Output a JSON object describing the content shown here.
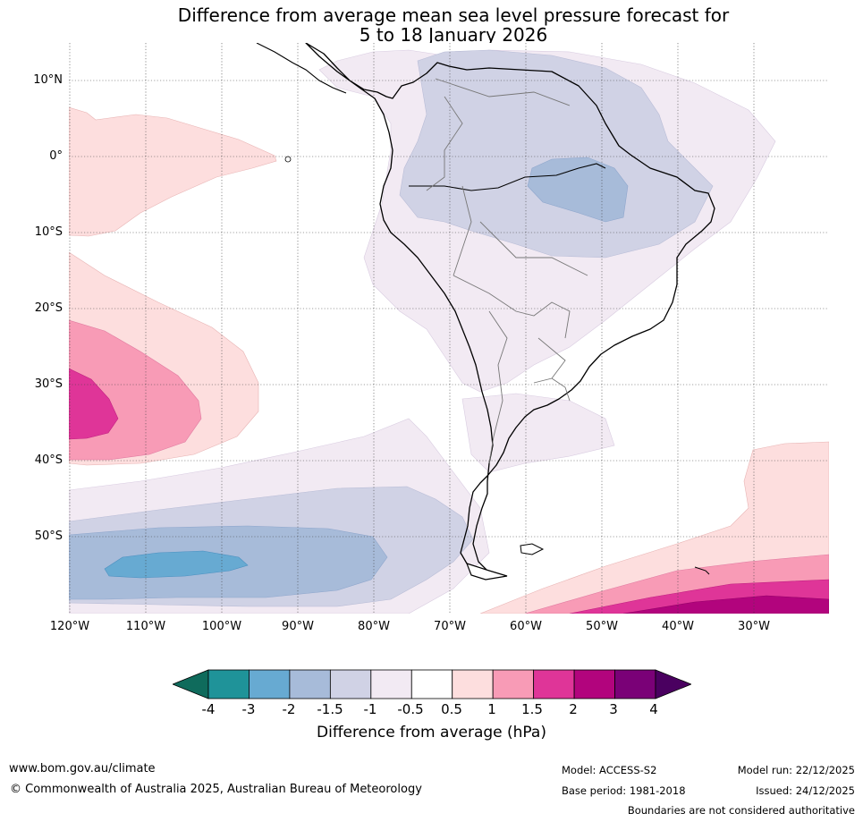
{
  "title": {
    "line1": "Difference from average mean sea level pressure forecast for",
    "line2": "5 to 18 January 2026"
  },
  "latitude_labels": [
    "10°N",
    "0°",
    "10°S",
    "20°S",
    "30°S",
    "40°S",
    "50°S"
  ],
  "longitude_labels": [
    "120°W",
    "110°W",
    "100°W",
    "90°W",
    "80°W",
    "70°W",
    "60°W",
    "50°W",
    "40°W",
    "30°W"
  ],
  "colorbar": {
    "ticks": [
      "-4",
      "-3",
      "-2",
      "-1.5",
      "-1",
      "-0.5",
      "0.5",
      "1",
      "1.5",
      "2",
      "3",
      "4"
    ],
    "colors": [
      "#0f6b5c",
      "#1f9399",
      "#67aad2",
      "#a7bbd9",
      "#d0d2e5",
      "#f2eaf3",
      "#ffffff",
      "#fddede",
      "#f89bb6",
      "#df3598",
      "#b2047d",
      "#7a0177",
      "#4a0060"
    ],
    "label": "Difference from average (hPa)"
  },
  "footer": {
    "website": "www.bom.gov.au/climate",
    "copyright": "© Commonwealth of Australia 2025, Australian Bureau of Meteorology",
    "model": "Model: ACCESS-S2",
    "base_period": "Base period: 1981-2018",
    "model_run": "Model run: 22/12/2025",
    "issued": "Issued: 24/12/2025",
    "disclaimer": "Boundaries are not considered authoritative"
  }
}
